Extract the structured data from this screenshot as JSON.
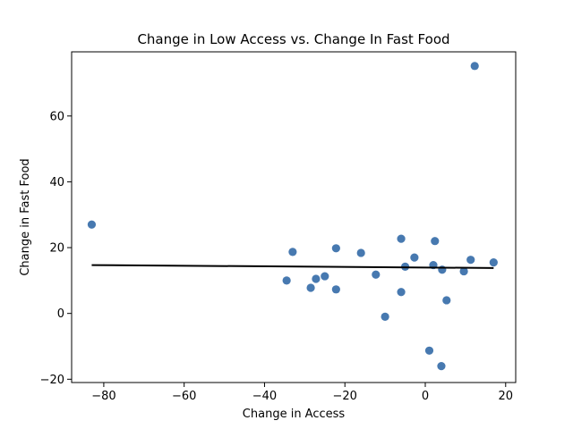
{
  "chart_data": {
    "type": "scatter",
    "title": "Change in Low Access vs. Change In Fast Food",
    "xlabel": "Change in Access",
    "ylabel": "Change in Fast Food",
    "xlim": [
      -88,
      22.5
    ],
    "ylim": [
      -21,
      79.5
    ],
    "xticks": [
      -80,
      -60,
      -40,
      -20,
      0,
      20
    ],
    "yticks": [
      -20,
      0,
      20,
      40,
      60
    ],
    "xtick_labels": [
      "−80",
      "−60",
      "−40",
      "−20",
      "0",
      "20"
    ],
    "ytick_labels": [
      "−20",
      "0",
      "20",
      "40",
      "60"
    ],
    "grid": false,
    "colors": {
      "points": "#4779b0",
      "trend": "#000000"
    },
    "points": [
      {
        "x": -83.0,
        "y": 27.0
      },
      {
        "x": -34.5,
        "y": 10.0
      },
      {
        "x": -33.0,
        "y": 18.7
      },
      {
        "x": -28.5,
        "y": 7.8
      },
      {
        "x": -27.2,
        "y": 10.5
      },
      {
        "x": -25.0,
        "y": 11.3
      },
      {
        "x": -22.2,
        "y": 19.8
      },
      {
        "x": -22.2,
        "y": 7.3
      },
      {
        "x": -16.0,
        "y": 18.4
      },
      {
        "x": -12.3,
        "y": 11.8
      },
      {
        "x": -10.0,
        "y": -1.0
      },
      {
        "x": -6.0,
        "y": 22.7
      },
      {
        "x": -6.0,
        "y": 6.5
      },
      {
        "x": -5.0,
        "y": 14.2
      },
      {
        "x": -2.7,
        "y": 17.0
      },
      {
        "x": 1.0,
        "y": -11.3
      },
      {
        "x": 2.0,
        "y": 14.7
      },
      {
        "x": 2.4,
        "y": 22.0
      },
      {
        "x": 4.0,
        "y": -16.0
      },
      {
        "x": 4.2,
        "y": 13.3
      },
      {
        "x": 5.3,
        "y": 4.0
      },
      {
        "x": 9.6,
        "y": 12.8
      },
      {
        "x": 11.3,
        "y": 16.3
      },
      {
        "x": 12.3,
        "y": 75.2
      },
      {
        "x": 17.0,
        "y": 15.5
      }
    ],
    "trend_line": [
      {
        "x": -83.0,
        "y": 14.7
      },
      {
        "x": 17.0,
        "y": 13.8
      }
    ]
  }
}
